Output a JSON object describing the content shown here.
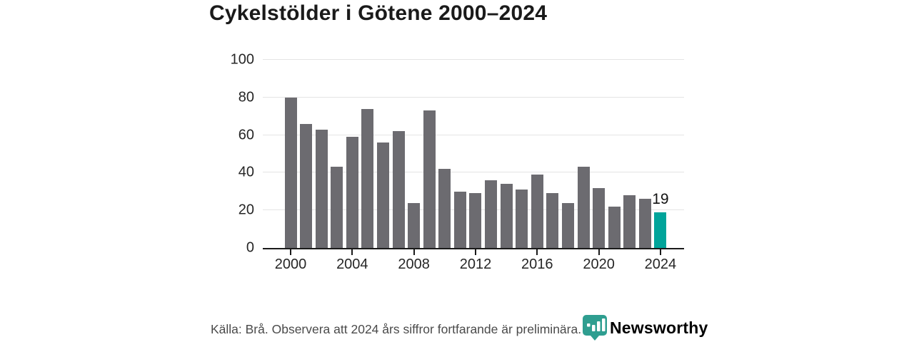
{
  "title": "Cykelstölder i Götene 2000–2024",
  "chart_data": {
    "type": "bar",
    "title": "Cykelstölder i Götene 2000–2024",
    "categories": [
      2000,
      2001,
      2002,
      2003,
      2004,
      2005,
      2006,
      2007,
      2008,
      2009,
      2010,
      2011,
      2012,
      2013,
      2014,
      2015,
      2016,
      2017,
      2018,
      2019,
      2020,
      2021,
      2022,
      2023,
      2024
    ],
    "values": [
      80,
      66,
      63,
      43,
      59,
      74,
      56,
      62,
      24,
      73,
      42,
      30,
      29,
      36,
      34,
      31,
      39,
      29,
      24,
      43,
      32,
      22,
      28,
      26,
      19
    ],
    "highlight_index": 24,
    "highlight_value_label": "19",
    "xlabel": "",
    "ylabel": "",
    "ylim": [
      0,
      100
    ],
    "yticks": [
      0,
      20,
      40,
      60,
      80,
      100
    ],
    "xticks": [
      2000,
      2004,
      2008,
      2012,
      2016,
      2020,
      2024
    ],
    "grid": true,
    "legend": "none",
    "bar_color": "#6c6b70",
    "highlight_color": "#00a49a"
  },
  "footer": {
    "source_note": "Källa: Brå. Observera att 2024 års siffror fortfarande är preliminära."
  },
  "logo": {
    "text": "Newsworthy",
    "color": "#2b9a8d",
    "icon": "bar-chart-pin-icon"
  },
  "colors": {
    "background": "#ffffff",
    "title_text": "#1a1a1a",
    "axis_line": "#1a1a1a",
    "gridline": "#e4e4e4",
    "tick_label": "#262626",
    "footer_text": "#4a4a4a"
  }
}
